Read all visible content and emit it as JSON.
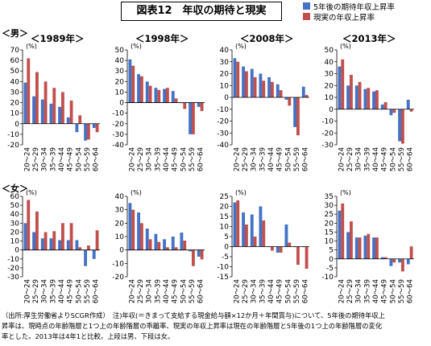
{
  "title": "図表12　年収の期待と現実",
  "legend": {
    "items": [
      {
        "label": "5年後の期待年収上昇率",
        "color": "#4472C4"
      },
      {
        "label": "現実の年収上昇率",
        "color": "#C0504D"
      }
    ]
  },
  "section_labels": {
    "male": "＜男＞",
    "female": "＜女＞"
  },
  "unit": "(%)",
  "footnote": {
    "line1": "（出所:厚生労働省よりSCGR作成）　注)年収(＝きまって支給する現金給与額×12か月＋年間賞与)について、5年後の期待年収上",
    "line2": "昇率は、現時点の年齢階層と1つ上の年齢階層の乖離率、現実の年収上昇率は現在の年齢階層と5年後の1つ上の年齢階層の変化",
    "line3": "率とした。2013年は4年1と比較。上段は男、下段は女。"
  },
  "chart_data": [
    {
      "type": "bar",
      "panel": "male-1989",
      "title": "＜1989年＞",
      "categories": [
        "20～24",
        "25～29",
        "30～34",
        "35～39",
        "40～44",
        "45～49",
        "50～54",
        "55～59",
        "60～64"
      ],
      "ylim": [
        -20,
        70
      ],
      "yticks": [
        -20,
        -10,
        0,
        10,
        20,
        30,
        40,
        50,
        60,
        70
      ],
      "series": [
        {
          "name": "5年後の期待年収上昇率",
          "values": [
            39,
            26,
            23,
            19,
            16,
            6,
            -8,
            -16,
            -4
          ]
        },
        {
          "name": "現実の年収上昇率",
          "values": [
            62,
            49,
            40,
            34,
            30,
            22,
            8,
            -15,
            -8
          ]
        }
      ]
    },
    {
      "type": "bar",
      "panel": "male-1998",
      "title": "＜1998年＞",
      "categories": [
        "20～24",
        "25～29",
        "30～34",
        "35～39",
        "40～44",
        "45～49",
        "50～54",
        "55～59",
        "60～64"
      ],
      "ylim": [
        -40,
        50
      ],
      "yticks": [
        -40,
        -30,
        -20,
        -10,
        0,
        10,
        20,
        30,
        40,
        50
      ],
      "series": [
        {
          "name": "5年後の期待年収上昇率",
          "values": [
            41,
            27,
            20,
            14,
            13,
            11,
            0,
            -30,
            -4
          ]
        },
        {
          "name": "現実の年収上昇率",
          "values": [
            35,
            25,
            16,
            12,
            14,
            4,
            -6,
            -30,
            -8
          ]
        }
      ]
    },
    {
      "type": "bar",
      "panel": "male-2008",
      "title": "＜2008年＞",
      "categories": [
        "20～24",
        "25～29",
        "30～34",
        "35～39",
        "40～44",
        "45～49",
        "50～54",
        "55～59",
        "60～64"
      ],
      "ylim": [
        -40,
        40
      ],
      "yticks": [
        -40,
        -30,
        -20,
        -10,
        0,
        10,
        20,
        30,
        40
      ],
      "series": [
        {
          "name": "5年後の期待年収上昇率",
          "values": [
            33,
            26,
            24,
            20,
            17,
            11,
            -2,
            -25,
            9
          ]
        },
        {
          "name": "現実の年収上昇率",
          "values": [
            30,
            22,
            17,
            14,
            13,
            6,
            -7,
            -32,
            2
          ]
        }
      ]
    },
    {
      "type": "bar",
      "panel": "male-2013",
      "title": "＜2013年＞",
      "categories": [
        "20～24",
        "25～29",
        "30～34",
        "35～39",
        "40～44",
        "45～49",
        "50～54",
        "55～59",
        "60～64"
      ],
      "ylim": [
        -30,
        50
      ],
      "yticks": [
        -30,
        -20,
        -10,
        0,
        10,
        20,
        30,
        40,
        50
      ],
      "series": [
        {
          "name": "5年後の期待年収上昇率",
          "values": [
            36,
            20,
            20,
            17,
            15,
            4,
            -5,
            -27,
            8
          ]
        },
        {
          "name": "現実の年収上昇率",
          "values": [
            42,
            29,
            23,
            18,
            16,
            6,
            -3,
            -29,
            -2
          ]
        }
      ]
    },
    {
      "type": "bar",
      "panel": "female-1989",
      "title": "",
      "categories": [
        "20～24",
        "25～29",
        "30～34",
        "35～39",
        "40～44",
        "45～49",
        "50～54",
        "55～59",
        "60～64"
      ],
      "ylim": [
        -30,
        60
      ],
      "yticks": [
        -30,
        -20,
        -10,
        0,
        10,
        20,
        30,
        40,
        50,
        60
      ],
      "series": [
        {
          "name": "5年後の期待年収上昇率",
          "values": [
            30,
            20,
            13,
            13,
            11,
            11,
            11,
            -18,
            -10
          ]
        },
        {
          "name": "現実の年収上昇率",
          "values": [
            56,
            43,
            20,
            21,
            30,
            30,
            3,
            5,
            22
          ]
        }
      ]
    },
    {
      "type": "bar",
      "panel": "female-1998",
      "title": "",
      "categories": [
        "20～24",
        "25～29",
        "30～34",
        "35～39",
        "40～44",
        "45～49",
        "50～54",
        "55～59",
        "60～64"
      ],
      "ylim": [
        -20,
        40
      ],
      "yticks": [
        -20,
        -10,
        0,
        10,
        20,
        30,
        40
      ],
      "series": [
        {
          "name": "5年後の期待年収上昇率",
          "values": [
            35,
            28,
            16,
            12,
            8,
            10,
            13,
            -1,
            -5
          ]
        },
        {
          "name": "現実の年収上昇率",
          "values": [
            30,
            20,
            8,
            6,
            2,
            2,
            7,
            -12,
            -7
          ]
        }
      ]
    },
    {
      "type": "bar",
      "panel": "female-2008",
      "title": "",
      "categories": [
        "20～24",
        "25～29",
        "30～34",
        "35～39",
        "40～44",
        "45～49",
        "50～54",
        "55～59",
        "60～64"
      ],
      "ylim": [
        -15,
        25
      ],
      "yticks": [
        -15,
        -10,
        -5,
        0,
        5,
        10,
        15,
        20,
        25
      ],
      "series": [
        {
          "name": "5年後の期待年収上昇率",
          "values": [
            22,
            17,
            16,
            20,
            0,
            -3,
            11,
            0,
            0
          ]
        },
        {
          "name": "現実の年収上昇率",
          "values": [
            23,
            11,
            5,
            13,
            -2,
            -3,
            2,
            -9,
            -11
          ]
        }
      ]
    },
    {
      "type": "bar",
      "panel": "female-2013",
      "title": "",
      "categories": [
        "20～24",
        "25～29",
        "30～34",
        "35～39",
        "40～44",
        "45～49",
        "50～54",
        "55～59",
        "60～64"
      ],
      "ylim": [
        -10,
        35
      ],
      "yticks": [
        -10,
        -5,
        0,
        5,
        10,
        15,
        20,
        25,
        30,
        35
      ],
      "series": [
        {
          "name": "5年後の期待年収上昇率",
          "values": [
            27,
            15,
            12,
            13,
            12,
            1,
            -4,
            -2,
            -3
          ]
        },
        {
          "name": "現実の年収上昇率",
          "values": [
            31,
            21,
            12,
            14,
            12,
            1,
            -2,
            -7,
            7
          ]
        }
      ]
    }
  ]
}
